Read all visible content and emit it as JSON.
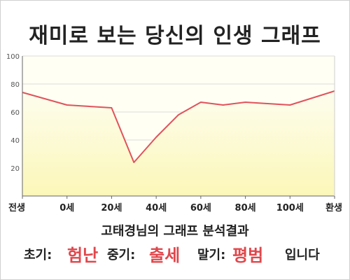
{
  "title": "재미로 보는 당신의 인생 그래프",
  "summary": {
    "heading": "고태경님의 그래프 분석결과",
    "early_label": "초기:",
    "early_value": "험난",
    "middle_label": "중기:",
    "middle_value": "출세",
    "late_label": "말기:",
    "late_value": "평범",
    "closing": "입니다"
  },
  "colors": {
    "line": "#e0535a",
    "fill_top": "#fdfdee",
    "fill_bottom": "#fcf7b8",
    "plot_bg": "#fffff4",
    "grid": "#dddddd",
    "axis": "#666666",
    "value_accent": "#e0474c"
  },
  "chart_data": {
    "type": "area",
    "title": "재미로 보는 당신의 인생 그래프",
    "x_positions": [
      -20,
      0,
      20,
      30,
      40,
      50,
      60,
      70,
      80,
      90,
      100,
      120
    ],
    "y": [
      74,
      65,
      63,
      24,
      42,
      58,
      67,
      65,
      67,
      66,
      65,
      75
    ],
    "x_ticks": [
      {
        "x": -20,
        "label": "전생"
      },
      {
        "x": 0,
        "label": "0세"
      },
      {
        "x": 20,
        "label": "20세"
      },
      {
        "x": 40,
        "label": "40세"
      },
      {
        "x": 60,
        "label": "60세"
      },
      {
        "x": 80,
        "label": "80세"
      },
      {
        "x": 100,
        "label": "100세"
      },
      {
        "x": 120,
        "label": "환생"
      }
    ],
    "y_ticks": [
      20,
      40,
      60,
      80,
      100
    ],
    "xlim": [
      -20,
      120
    ],
    "ylim": [
      0,
      100
    ],
    "xlabel": "",
    "ylabel": "",
    "grid": "horizontal"
  }
}
